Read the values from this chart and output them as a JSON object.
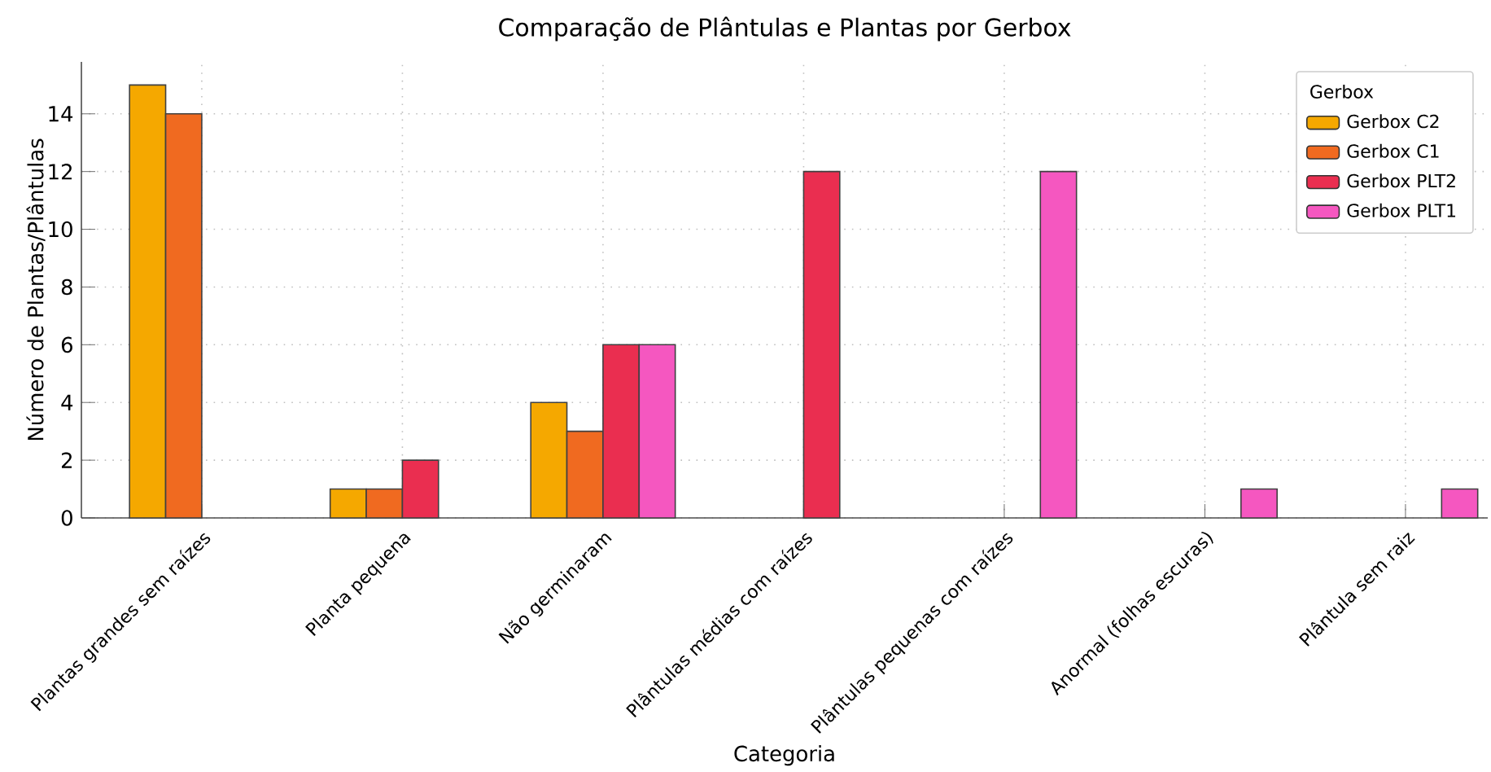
{
  "chart_data": {
    "type": "bar",
    "title": "Comparação de Plântulas e Plantas por Gerbox",
    "xlabel": "Categoria",
    "ylabel": "Número de Plantas/Plântulas",
    "categories": [
      "Plantas grandes sem raízes",
      "Planta pequena",
      "Não germinaram",
      "Plântulas médias com raízes",
      "Plântulas pequenas com raízes",
      "Anormal (folhas escuras)",
      "Plântula sem raiz"
    ],
    "series": [
      {
        "name": "Gerbox C2",
        "color": "#f5a800",
        "values": [
          15,
          1,
          4,
          null,
          null,
          null,
          null
        ]
      },
      {
        "name": "Gerbox C1",
        "color": "#f06a20",
        "values": [
          14,
          1,
          3,
          null,
          null,
          null,
          null
        ]
      },
      {
        "name": "Gerbox PLT2",
        "color": "#ea2e50",
        "values": [
          null,
          2,
          6,
          12,
          null,
          null,
          null
        ]
      },
      {
        "name": "Gerbox PLT1",
        "color": "#f557c0",
        "values": [
          null,
          null,
          6,
          null,
          12,
          1,
          1
        ]
      }
    ],
    "legend_title": "Gerbox",
    "legend": "top right",
    "grid": true,
    "ylim": [
      0,
      15.8
    ],
    "yticks": [
      0,
      2,
      4,
      6,
      8,
      10,
      12,
      14
    ]
  }
}
